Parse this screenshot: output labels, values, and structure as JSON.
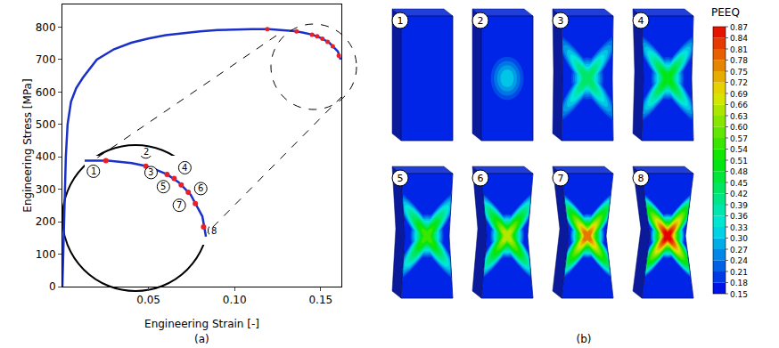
{
  "chart_data": {
    "type": "line",
    "x_label": "Engineering Strain [-]",
    "y_label": "Engineering Stress [MPa]",
    "xlim": [
      0,
      0.162
    ],
    "ylim": [
      0,
      870
    ],
    "xticks": [
      0.05,
      {
        "value": 0.1,
        "label": "0.10"
      },
      0.15
    ],
    "yticks": [
      0,
      100,
      200,
      300,
      400,
      500,
      600,
      700,
      800
    ],
    "grid": false,
    "series": [
      {
        "color": "#1a30c8",
        "line_style": "solid",
        "x": [
          0,
          0.002,
          0.003,
          0.005,
          0.008,
          0.012,
          0.02,
          0.03,
          0.04,
          0.05,
          0.06,
          0.07,
          0.08,
          0.09,
          0.1,
          0.11,
          0.12,
          0.13,
          0.135,
          0.14,
          0.145,
          0.15,
          0.155,
          0.16,
          0.1615
        ],
        "values": [
          0,
          400,
          500,
          570,
          612,
          645,
          700,
          732,
          752,
          765,
          775,
          782,
          787,
          791,
          793,
          794,
          794,
          791,
          788,
          783,
          777,
          767,
          752,
          725,
          700
        ]
      }
    ],
    "points": {
      "color": "#e8202a",
      "marker": "circle",
      "x": [
        0.119,
        0.136,
        0.145,
        0.148,
        0.151,
        0.154,
        0.157,
        0.1605
      ],
      "values": [
        794,
        787,
        777,
        772,
        764,
        755,
        741,
        712
      ],
      "labels": [
        "1",
        "2",
        "3",
        "4",
        "5",
        "6",
        "7",
        "8"
      ]
    },
    "inset": {
      "xlim": [
        0.11,
        0.163
      ],
      "ylim": [
        690,
        800
      ]
    },
    "panel_label": "(a)"
  },
  "contour_panel": {
    "panel_label": "(b)",
    "frames": [
      "1",
      "2",
      "3",
      "4",
      "5",
      "6",
      "7",
      "8"
    ],
    "colorbar": {
      "title": "PEEQ",
      "range": [
        0.15,
        0.87
      ],
      "ticks": [
        0.15,
        0.18,
        0.21,
        0.24,
        0.27,
        {
          "value": 0.3,
          "label": "0.30"
        },
        0.33,
        0.36,
        0.39,
        0.42,
        0.45,
        0.48,
        0.51,
        0.54,
        0.57,
        {
          "value": 0.6,
          "label": "0.60"
        },
        0.63,
        0.66,
        0.69,
        0.72,
        0.75,
        0.78,
        0.81,
        0.84,
        0.87
      ]
    }
  }
}
